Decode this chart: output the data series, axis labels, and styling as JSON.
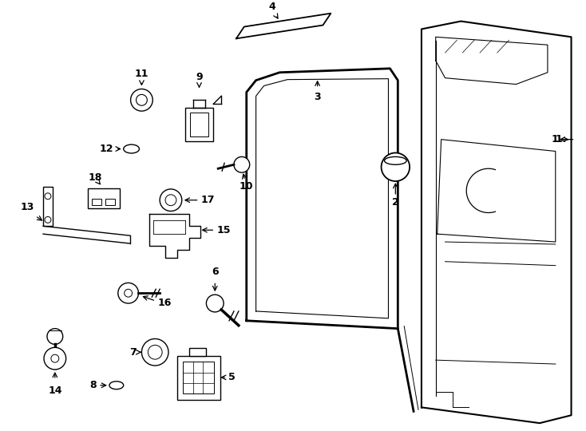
{
  "bg_color": "#ffffff",
  "line_color": "#000000",
  "figure_size": [
    7.34,
    5.4
  ],
  "dpi": 100
}
